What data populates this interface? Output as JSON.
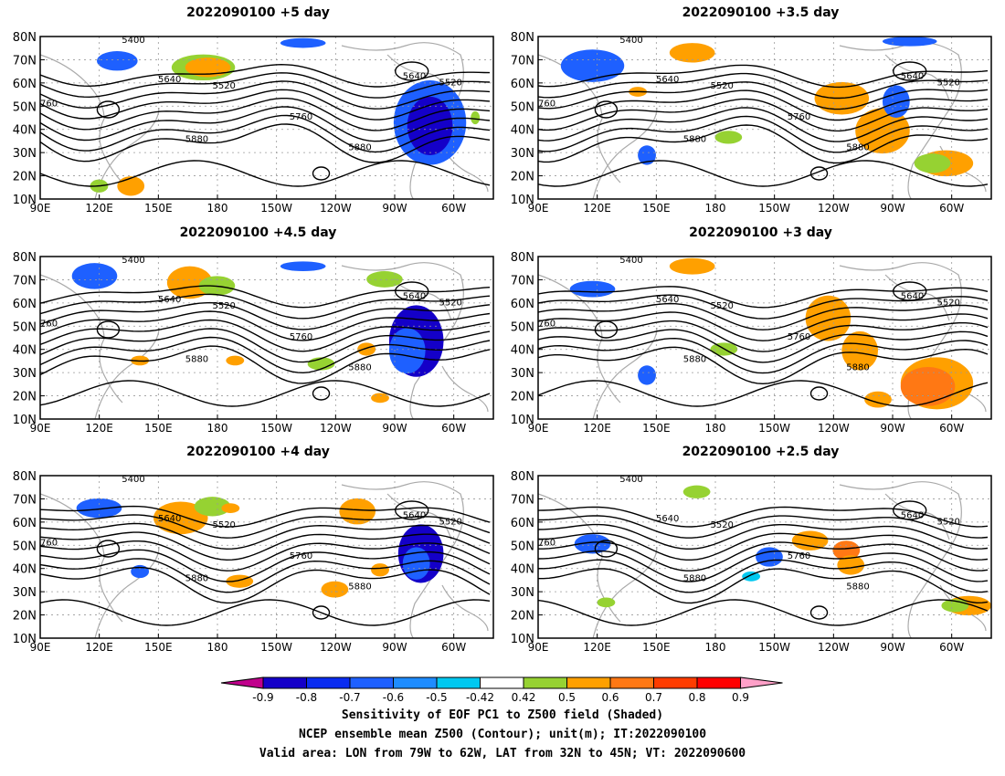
{
  "panels": [
    {
      "title": "2022090100 +5 day"
    },
    {
      "title": "2022090100 +3.5 day"
    },
    {
      "title": "2022090100 +4.5 day"
    },
    {
      "title": "2022090100 +3 day"
    },
    {
      "title": "2022090100 +4 day"
    },
    {
      "title": "2022090100 +2.5 day"
    }
  ],
  "axes": {
    "lat_labels": [
      "80N",
      "70N",
      "60N",
      "50N",
      "40N",
      "30N",
      "20N",
      "10N"
    ],
    "lon_labels": [
      "90E",
      "120E",
      "150E",
      "180",
      "150W",
      "120W",
      "90W",
      "60W"
    ]
  },
  "contour_labels": [
    "5400",
    "5520",
    "5640",
    "5760",
    "5880",
    "760"
  ],
  "colorbar": {
    "ticks": [
      "-0.9",
      "-0.8",
      "-0.7",
      "-0.6",
      "-0.5",
      "-0.42",
      "0.42",
      "0.5",
      "0.6",
      "0.7",
      "0.8",
      "0.9"
    ],
    "colors": [
      "#c0008c",
      "#1400c8",
      "#0a2cf0",
      "#1e60ff",
      "#1e8cff",
      "#00c8f0",
      "#ffffff",
      "#96d232",
      "#ffa000",
      "#ff7814",
      "#ff3c00",
      "#ff0000",
      "#ffa0c8"
    ]
  },
  "caption": {
    "line1": "Sensitivity of EOF PC1 to Z500 field (Shaded)",
    "line2": "NCEP ensemble mean Z500 (Contour); unit(m); IT:2022090100",
    "line3": "Valid area: LON from 79W to 62W, LAT from 32N to 45N; VT: 2022090600"
  }
}
